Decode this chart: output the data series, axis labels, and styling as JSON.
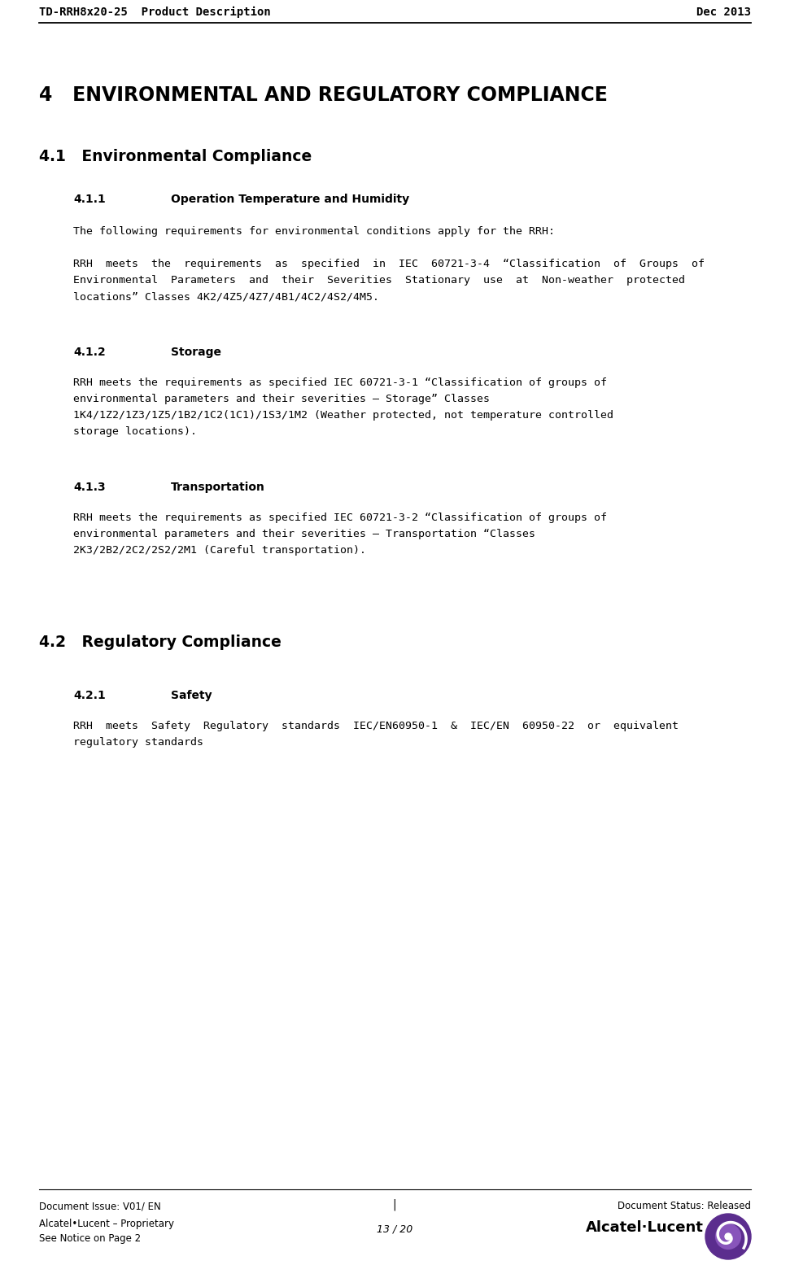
{
  "header_left": "TD-RRH8x20-25  Product Description",
  "header_right": "Dec 2013",
  "footer_issue": "Document Issue: V01/ EN",
  "footer_separator": "|",
  "footer_status": "Document Status: Released",
  "footer_proprietary": "Alcatel•Lucent – Proprietary",
  "footer_page": "13 / 20",
  "footer_notice": "See Notice on Page 2",
  "section4_title": "4   ENVIRONMENTAL AND REGULATORY COMPLIANCE",
  "section41_title": "4.1   Environmental Compliance",
  "section411_num": "4.1.1",
  "section411_heading": "Operation Temperature and Humidity",
  "section411_para1": "The following requirements for environmental conditions apply for the RRH:",
  "section411_para2_line1": "RRH  meets  the  requirements  as  specified  in  IEC  60721-3-4  “Classification  of  Groups  of",
  "section411_para2_line2": "Environmental  Parameters  and  their  Severities  Stationary  use  at  Non-weather  protected",
  "section411_para2_line3": "locations” Classes 4K2/4Z5/4Z7/4B1/4C2/4S2/4M5.",
  "section412_num": "4.1.2",
  "section412_heading": "Storage",
  "section412_para_line1": "RRH meets the requirements as specified IEC 60721-3-1 “Classification of groups of",
  "section412_para_line2": "environmental parameters and their severities – Storage” Classes",
  "section412_para_line3": "1K4/1Z2/1Z3/1Z5/1B2/1C2(1C1)/1S3/1M2 (Weather protected, not temperature controlled",
  "section412_para_line4": "storage locations).",
  "section413_num": "4.1.3",
  "section413_heading": "Transportation",
  "section413_para_line1": "RRH meets the requirements as specified IEC 60721-3-2 “Classification of groups of",
  "section413_para_line2": "environmental parameters and their severities – Transportation “Classes",
  "section413_para_line3": "2K3/2B2/2C2/2S2/2M1 (Careful transportation).",
  "section42_title": "4.2   Regulatory Compliance",
  "section421_num": "4.2.1",
  "section421_heading": "Safety",
  "section421_para_line1": "RRH  meets  Safety  Regulatory  standards  IEC/EN60950-1  &  IEC/EN  60950-22  or  equivalent",
  "section421_para_line2": "regulatory standards",
  "bg_color": "#ffffff",
  "text_color": "#000000",
  "line_color": "#000000",
  "logo_purple": "#5b2d8e",
  "logo_dark": "#3a1a6e"
}
